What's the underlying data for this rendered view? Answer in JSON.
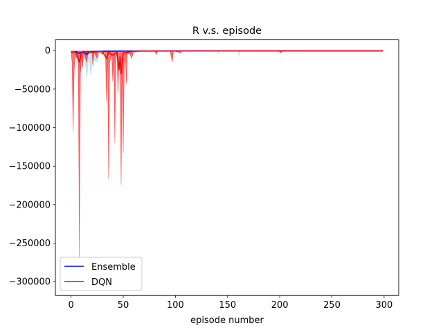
{
  "chart_data": {
    "type": "line",
    "title": "R v.s. episode",
    "xlabel": "episode number",
    "ylabel": "",
    "xlim": [
      -15,
      314
    ],
    "ylim": [
      -318000,
      14000
    ],
    "xticks": [
      0,
      50,
      100,
      150,
      200,
      250,
      300
    ],
    "yticks": [
      0,
      -50000,
      -100000,
      -150000,
      -200000,
      -250000,
      -300000
    ],
    "xtick_labels": [
      "0",
      "50",
      "100",
      "150",
      "200",
      "250",
      "300"
    ],
    "ytick_labels": [
      "0",
      "−50000",
      "−100000",
      "−150000",
      "−200000",
      "−250000",
      "−300000"
    ],
    "grid": false,
    "legend_position": "lower-left",
    "series": [
      {
        "name": "Ensemble",
        "color": "#0000ff",
        "band_color": "#add8e6",
        "mean": [
          [
            0,
            -2000
          ],
          [
            5,
            -1500
          ],
          [
            8,
            -3500
          ],
          [
            12,
            -1500
          ],
          [
            15,
            -5000
          ],
          [
            17,
            -2000
          ],
          [
            20,
            -1200
          ],
          [
            30,
            -800
          ],
          [
            50,
            -500
          ],
          [
            100,
            -300
          ],
          [
            150,
            -300
          ],
          [
            200,
            -300
          ],
          [
            250,
            -300
          ],
          [
            299,
            -300
          ]
        ],
        "band_low": [
          [
            0,
            -3000
          ],
          [
            4,
            -2000
          ],
          [
            9,
            -30000
          ],
          [
            13,
            -8000
          ],
          [
            15,
            -40000
          ],
          [
            17,
            -10000
          ],
          [
            19,
            -34000
          ],
          [
            21,
            -12000
          ],
          [
            25,
            -15000
          ],
          [
            28,
            -2000
          ],
          [
            40,
            -1500
          ],
          [
            60,
            -1000
          ],
          [
            100,
            -800
          ],
          [
            140,
            -800
          ],
          [
            141,
            -6000
          ],
          [
            142,
            -800
          ],
          [
            160,
            -800
          ],
          [
            161,
            -10000
          ],
          [
            162,
            -800
          ],
          [
            200,
            -500
          ],
          [
            299,
            -500
          ]
        ],
        "band_high": [
          [
            0,
            0
          ],
          [
            299,
            0
          ]
        ]
      },
      {
        "name": "DQN",
        "color": "#ff0000",
        "band_color": "#ff0000",
        "mean": [
          [
            0,
            -2000
          ],
          [
            4,
            -1500
          ],
          [
            6,
            -6000
          ],
          [
            8,
            -15000
          ],
          [
            10,
            -3000
          ],
          [
            15,
            -1200
          ],
          [
            20,
            -2000
          ],
          [
            30,
            -1000
          ],
          [
            34,
            -10000
          ],
          [
            36,
            -2000
          ],
          [
            40,
            -6000
          ],
          [
            44,
            -2000
          ],
          [
            46,
            -25000
          ],
          [
            47,
            -8000
          ],
          [
            48,
            -30000
          ],
          [
            50,
            -3000
          ],
          [
            60,
            -800
          ],
          [
            70,
            -600
          ],
          [
            100,
            -500
          ],
          [
            200,
            -300
          ],
          [
            299,
            -300
          ]
        ],
        "band_low": [
          [
            0,
            -2000
          ],
          [
            1,
            -15000
          ],
          [
            2,
            -106000
          ],
          [
            3,
            -25000
          ],
          [
            4,
            -5000
          ],
          [
            5,
            -10000
          ],
          [
            6,
            -8000
          ],
          [
            7,
            -18000
          ],
          [
            8,
            -270000
          ],
          [
            9,
            -30000
          ],
          [
            10,
            -5000
          ],
          [
            11,
            -22000
          ],
          [
            12,
            -3000
          ],
          [
            15,
            -15000
          ],
          [
            16,
            -5000
          ],
          [
            18,
            -3000
          ],
          [
            20,
            -2000
          ],
          [
            21,
            -20000
          ],
          [
            22,
            -2000
          ],
          [
            25,
            -10000
          ],
          [
            26,
            -2000
          ],
          [
            28,
            -1500
          ],
          [
            30,
            -5000
          ],
          [
            32,
            -2000
          ],
          [
            33,
            -3000
          ],
          [
            34,
            -67000
          ],
          [
            35,
            -2000
          ],
          [
            36,
            -167000
          ],
          [
            37,
            -15000
          ],
          [
            39,
            -5000
          ],
          [
            40,
            -40000
          ],
          [
            41,
            -5000
          ],
          [
            42,
            -120000
          ],
          [
            43,
            -10000
          ],
          [
            44,
            -3000
          ],
          [
            45,
            -56000
          ],
          [
            46,
            -10000
          ],
          [
            47,
            -10000
          ],
          [
            48,
            -174000
          ],
          [
            49,
            -8000
          ],
          [
            50,
            -133000
          ],
          [
            51,
            -20000
          ],
          [
            52,
            -3000
          ],
          [
            53,
            -43000
          ],
          [
            54,
            -5000
          ],
          [
            56,
            -3000
          ],
          [
            58,
            -10000
          ],
          [
            60,
            -1500
          ],
          [
            62,
            -2000
          ],
          [
            64,
            -1000
          ],
          [
            80,
            -1000
          ],
          [
            82,
            -5000
          ],
          [
            83,
            -1000
          ],
          [
            95,
            -1000
          ],
          [
            97,
            -15000
          ],
          [
            98,
            -1000
          ],
          [
            100,
            -1000
          ],
          [
            105,
            -3000
          ],
          [
            106,
            -500
          ],
          [
            199,
            -500
          ],
          [
            201,
            -3000
          ],
          [
            203,
            -500
          ],
          [
            299,
            -500
          ]
        ],
        "band_high": [
          [
            0,
            -500
          ],
          [
            299,
            -500
          ]
        ]
      }
    ]
  }
}
